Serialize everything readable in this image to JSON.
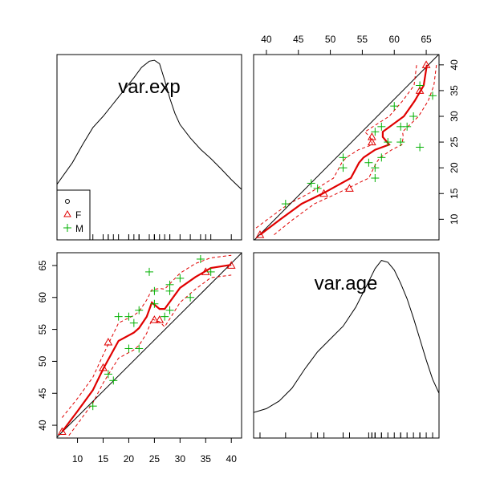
{
  "chart_data": {
    "type": "scatter",
    "variables": [
      "var.exp",
      "var.age"
    ],
    "colors": {
      "F": "#e00000",
      "M": "#00b000",
      "fit": "#e00000",
      "line": "#000000"
    },
    "legend": {
      "placement": "bottom-left of top-left panel",
      "entries": [
        {
          "symbol": "open-circle",
          "label": ""
        },
        {
          "symbol": "open-triangle",
          "label": "F"
        },
        {
          "symbol": "plus",
          "label": "M"
        }
      ]
    },
    "exp_axis": {
      "range": [
        6,
        42
      ],
      "ticks": [
        10,
        15,
        20,
        25,
        30,
        35,
        40
      ]
    },
    "age_axis": {
      "range": [
        38,
        67
      ],
      "ticks": [
        40,
        45,
        50,
        55,
        60,
        65
      ]
    },
    "exp_tick_labels": [
      "10",
      "15",
      "20",
      "25",
      "30",
      "35",
      "40"
    ],
    "age_tick_labels": [
      "40",
      "45",
      "50",
      "55",
      "60",
      "65"
    ],
    "points": [
      {
        "exp": 7,
        "age": 39,
        "group": "F"
      },
      {
        "exp": 13,
        "age": 43,
        "group": "M"
      },
      {
        "exp": 15,
        "age": 49,
        "group": "F"
      },
      {
        "exp": 16,
        "age": 48,
        "group": "M"
      },
      {
        "exp": 16,
        "age": 53,
        "group": "F"
      },
      {
        "exp": 17,
        "age": 47,
        "group": "M"
      },
      {
        "exp": 18,
        "age": 57,
        "group": "M"
      },
      {
        "exp": 20,
        "age": 52,
        "group": "M"
      },
      {
        "exp": 20,
        "age": 57,
        "group": "M"
      },
      {
        "exp": 21,
        "age": 56,
        "group": "M"
      },
      {
        "exp": 22,
        "age": 58,
        "group": "M"
      },
      {
        "exp": 22,
        "age": 52,
        "group": "M"
      },
      {
        "exp": 24,
        "age": 64,
        "group": "M"
      },
      {
        "exp": 25,
        "age": 61,
        "group": "M"
      },
      {
        "exp": 25,
        "age": 56.5,
        "group": "F"
      },
      {
        "exp": 25,
        "age": 59,
        "group": "M"
      },
      {
        "exp": 26,
        "age": 56.5,
        "group": "F"
      },
      {
        "exp": 27,
        "age": 57,
        "group": "M"
      },
      {
        "exp": 28,
        "age": 61,
        "group": "M"
      },
      {
        "exp": 28,
        "age": 62,
        "group": "M"
      },
      {
        "exp": 28,
        "age": 58,
        "group": "M"
      },
      {
        "exp": 30,
        "age": 63,
        "group": "M"
      },
      {
        "exp": 32,
        "age": 60,
        "group": "M"
      },
      {
        "exp": 34,
        "age": 66,
        "group": "M"
      },
      {
        "exp": 35,
        "age": 64,
        "group": "F"
      },
      {
        "exp": 36,
        "age": 64,
        "group": "M"
      },
      {
        "exp": 40,
        "age": 65,
        "group": "F"
      }
    ],
    "regression_line": {
      "intercept": 33.34,
      "slope": 0.8
    },
    "smooth": [
      [
        7,
        39
      ],
      [
        10,
        42.2
      ],
      [
        13,
        45.5
      ],
      [
        15,
        48.8
      ],
      [
        18,
        53.2
      ],
      [
        21,
        54.5
      ],
      [
        22,
        55.2
      ],
      [
        23.5,
        57
      ],
      [
        24.5,
        59.2
      ],
      [
        26,
        58.2
      ],
      [
        27,
        58.2
      ],
      [
        30,
        61.5
      ],
      [
        33,
        63.2
      ],
      [
        36,
        64.6
      ],
      [
        40,
        65.1
      ]
    ],
    "smooth_upper": [
      [
        7,
        41.2
      ],
      [
        10,
        44.2
      ],
      [
        13,
        47.5
      ],
      [
        15,
        51
      ],
      [
        18,
        56
      ],
      [
        21,
        57.2
      ],
      [
        22,
        57.8
      ],
      [
        23.5,
        59.6
      ],
      [
        24.5,
        61.2
      ],
      [
        26,
        61.4
      ],
      [
        27,
        61.3
      ],
      [
        30,
        63.8
      ],
      [
        33,
        65.3
      ],
      [
        36,
        66.2
      ],
      [
        40,
        66.6
      ]
    ],
    "smooth_lower": [
      [
        7,
        37
      ],
      [
        10,
        40.2
      ],
      [
        13,
        43.5
      ],
      [
        15,
        46.6
      ],
      [
        18,
        50.5
      ],
      [
        21,
        51.8
      ],
      [
        22,
        52.5
      ],
      [
        23.5,
        54.4
      ],
      [
        24.5,
        56.6
      ],
      [
        26,
        56.2
      ],
      [
        27,
        55.4
      ],
      [
        30,
        59.2
      ],
      [
        33,
        61.3
      ],
      [
        36,
        63.1
      ],
      [
        40,
        63.5
      ]
    ],
    "density_exp": [
      [
        6,
        15.8
      ],
      [
        9,
        20
      ],
      [
        11,
        23.5
      ],
      [
        13,
        26.8
      ],
      [
        15,
        29
      ],
      [
        17,
        31.5
      ],
      [
        19,
        34
      ],
      [
        21,
        36.5
      ],
      [
        22.5,
        38.5
      ],
      [
        24,
        39.7
      ],
      [
        25,
        39.9
      ],
      [
        26,
        39.2
      ],
      [
        27,
        36
      ],
      [
        28,
        32.5
      ],
      [
        29,
        29.6
      ],
      [
        30,
        27.4
      ],
      [
        32,
        24.8
      ],
      [
        34,
        22.6
      ],
      [
        36,
        20.8
      ],
      [
        38,
        18.8
      ],
      [
        40,
        16.7
      ],
      [
        42,
        14.8
      ]
    ],
    "density_age": [
      [
        38,
        42
      ],
      [
        40,
        42.6
      ],
      [
        42,
        43.8
      ],
      [
        44,
        45.8
      ],
      [
        46,
        48.8
      ],
      [
        48,
        51.5
      ],
      [
        50,
        53.5
      ],
      [
        52,
        55.5
      ],
      [
        54,
        58.5
      ],
      [
        56,
        62.5
      ],
      [
        57,
        64.5
      ],
      [
        58,
        65.8
      ],
      [
        59,
        65.5
      ],
      [
        60,
        64.3
      ],
      [
        61,
        62.2
      ],
      [
        62,
        59.8
      ],
      [
        63,
        56.8
      ],
      [
        64,
        53.5
      ],
      [
        65,
        50.2
      ],
      [
        66,
        47.2
      ],
      [
        67,
        45
      ]
    ]
  }
}
